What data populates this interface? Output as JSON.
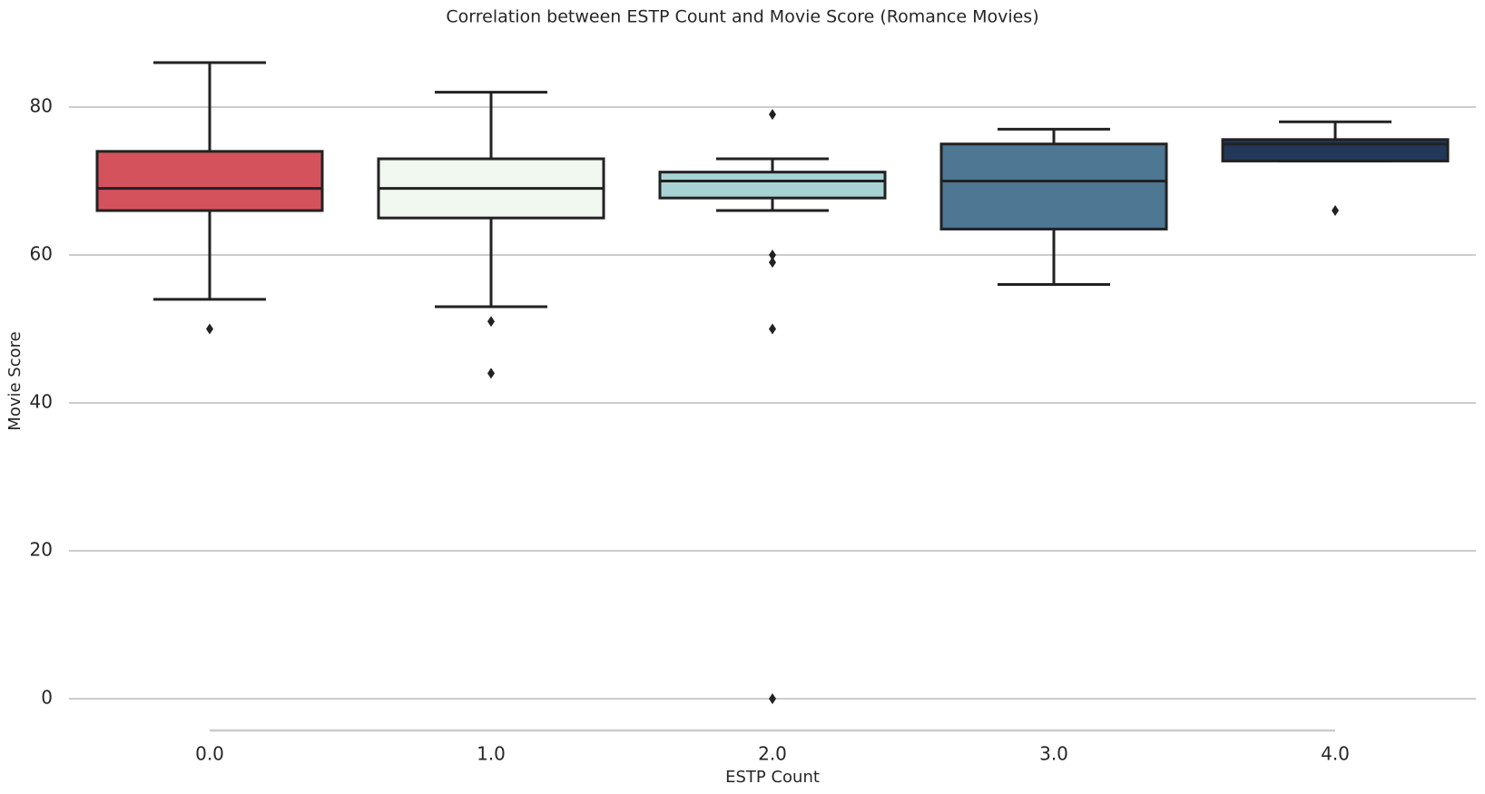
{
  "chart_data": {
    "type": "box",
    "title": "Correlation between ESTP Count and Movie Score (Romance Movies)",
    "x_label": "ESTP Count",
    "y_label": "Movie Score",
    "categories": [
      "0.0",
      "1.0",
      "2.0",
      "3.0",
      "4.0"
    ],
    "boxes": [
      {
        "whislo": 54,
        "q1": 66,
        "med": 69,
        "q3": 74,
        "whishi": 86,
        "fliers": [
          50
        ],
        "color": "#d4525c"
      },
      {
        "whislo": 53,
        "q1": 65,
        "med": 69,
        "q3": 73,
        "whishi": 82,
        "fliers": [
          51,
          44
        ],
        "color": "#f0f8ef"
      },
      {
        "whislo": 66,
        "q1": 67.7,
        "med": 70,
        "q3": 71.2,
        "whishi": 73,
        "fliers": [
          79,
          60,
          59,
          50,
          0
        ],
        "color": "#a8d3d4"
      },
      {
        "whislo": 56,
        "q1": 63.5,
        "med": 70,
        "q3": 75,
        "whishi": 77,
        "fliers": [],
        "color": "#4e7793"
      },
      {
        "whislo": 72.7,
        "q1": 72.7,
        "med": 75,
        "q3": 75.6,
        "whishi": 78,
        "fliers": [
          66
        ],
        "color": "#22385a"
      }
    ],
    "ylim": [
      -4.3,
      90.3
    ],
    "yticks": [
      0,
      20,
      40,
      60,
      80
    ],
    "grid": true
  }
}
